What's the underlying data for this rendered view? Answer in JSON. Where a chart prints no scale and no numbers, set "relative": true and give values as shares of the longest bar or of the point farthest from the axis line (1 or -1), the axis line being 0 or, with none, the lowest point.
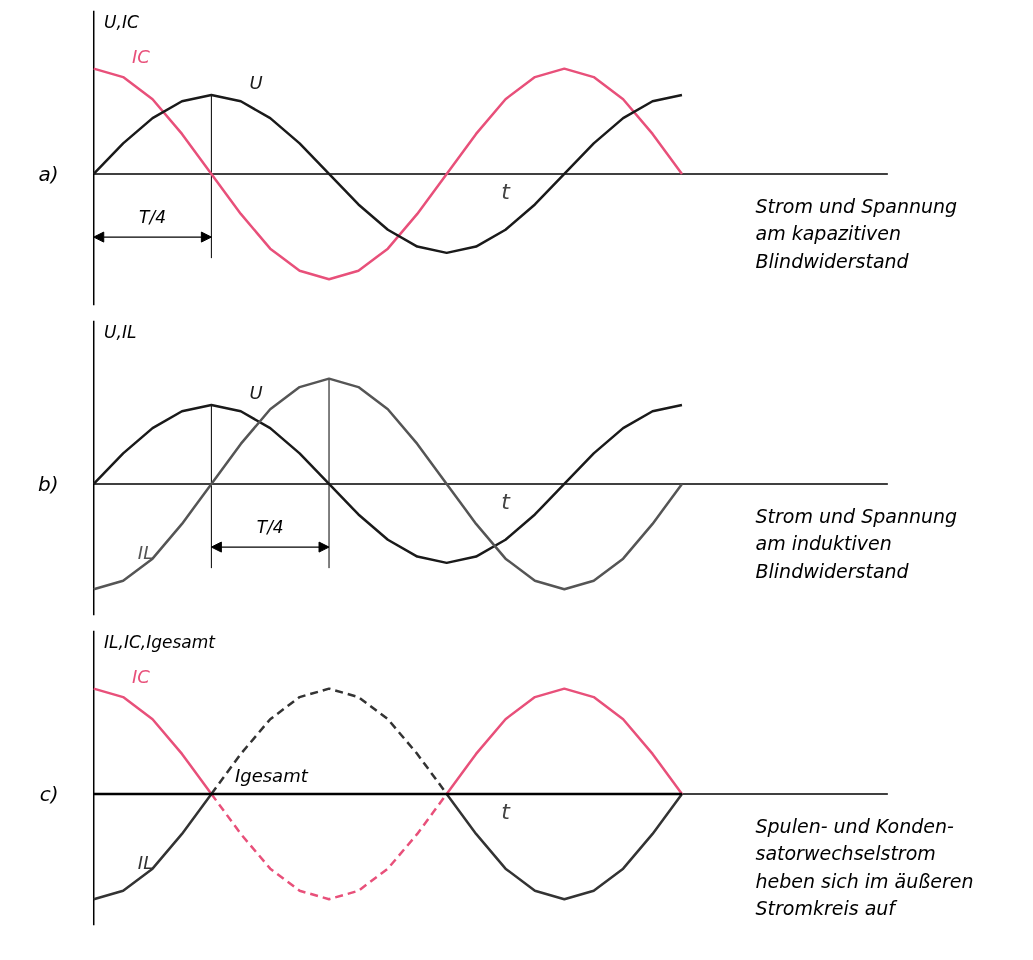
{
  "chart_data": [
    {
      "type": "line",
      "relative": true,
      "grid": false,
      "xlabel": "t",
      "ylabel": "U,IC",
      "categories": [
        null,
        null,
        null,
        null,
        null,
        null,
        null,
        null,
        null,
        null,
        null,
        null,
        null,
        null,
        null,
        null,
        null,
        null,
        null,
        null,
        null
      ],
      "series": [
        {
          "name": "IC",
          "color": "#e8507a",
          "values": [
            1,
            0.92,
            0.71,
            0.38,
            0,
            -0.38,
            -0.71,
            -0.92,
            -1,
            -0.92,
            -0.71,
            -0.38,
            0,
            0.38,
            0.71,
            0.92,
            1,
            0.92,
            0.71,
            0.38,
            0
          ]
        },
        {
          "name": "U",
          "color": "#1a1a1a",
          "values": [
            0,
            0.29,
            0.53,
            0.69,
            0.75,
            0.69,
            0.53,
            0.29,
            0,
            -0.29,
            -0.53,
            -0.69,
            -0.75,
            -0.69,
            -0.53,
            -0.29,
            0,
            0.29,
            0.53,
            0.69,
            0.75
          ]
        }
      ],
      "annotations": [
        "a)",
        "T/4",
        "Strom und Spannung\nam kapazitiven\nBlindwiderstand"
      ]
    },
    {
      "type": "line",
      "relative": true,
      "grid": false,
      "xlabel": "t",
      "ylabel": "U,IL",
      "categories": [
        null,
        null,
        null,
        null,
        null,
        null,
        null,
        null,
        null,
        null,
        null,
        null,
        null,
        null,
        null,
        null,
        null,
        null,
        null,
        null,
        null
      ],
      "series": [
        {
          "name": "U",
          "color": "#1a1a1a",
          "values": [
            0,
            0.29,
            0.53,
            0.69,
            0.75,
            0.69,
            0.53,
            0.29,
            0,
            -0.29,
            -0.53,
            -0.69,
            -0.75,
            -0.69,
            -0.53,
            -0.29,
            0,
            0.29,
            0.53,
            0.69,
            0.75
          ]
        },
        {
          "name": "IL",
          "color": "#555555",
          "values": [
            -1,
            -0.92,
            -0.71,
            -0.38,
            0,
            0.38,
            0.71,
            0.92,
            1,
            0.92,
            0.71,
            0.38,
            0,
            -0.38,
            -0.71,
            -0.92,
            -1,
            -0.92,
            -0.71,
            -0.38,
            0
          ]
        }
      ],
      "annotations": [
        "b)",
        "T/4",
        "Strom und Spannung\nam induktiven\nBlindwiderstand"
      ]
    },
    {
      "type": "line",
      "relative": true,
      "grid": false,
      "xlabel": "t",
      "ylabel": "IL,IC,Igesamt",
      "categories": [
        null,
        null,
        null,
        null,
        null,
        null,
        null,
        null,
        null,
        null,
        null,
        null,
        null,
        null,
        null,
        null,
        null,
        null,
        null,
        null,
        null
      ],
      "series": [
        {
          "name": "IC",
          "color": "#e8507a",
          "line_style": "solid",
          "values": [
            1,
            0.92,
            0.71,
            0.38,
            0,
            null,
            null,
            null,
            null,
            null,
            null,
            null,
            0,
            0.38,
            0.71,
            0.92,
            1,
            0.92,
            0.71,
            0.38,
            0
          ]
        },
        {
          "color": "#e8507a",
          "line_style": "dashed",
          "values": [
            null,
            null,
            null,
            null,
            0,
            -0.38,
            -0.71,
            -0.92,
            -1,
            -0.92,
            -0.71,
            -0.38,
            0,
            null,
            null,
            null,
            null,
            null,
            null,
            null,
            null
          ]
        },
        {
          "name": "IL",
          "color": "#333333",
          "line_style": "solid",
          "values": [
            -1,
            -0.92,
            -0.71,
            -0.38,
            0,
            null,
            null,
            null,
            null,
            null,
            null,
            null,
            0,
            -0.38,
            -0.71,
            -0.92,
            -1,
            -0.92,
            -0.71,
            -0.38,
            0
          ]
        },
        {
          "color": "#333333",
          "line_style": "dashed",
          "values": [
            null,
            null,
            null,
            null,
            0,
            0.38,
            0.71,
            0.92,
            1,
            0.92,
            0.71,
            0.38,
            0,
            null,
            null,
            null,
            null,
            null,
            null,
            null,
            null
          ]
        },
        {
          "name": "Igesamt",
          "color": "#000000",
          "line_style": "solid",
          "values": [
            0,
            0,
            0,
            0,
            0,
            0,
            0,
            0,
            0,
            0,
            0,
            0,
            0,
            0,
            0,
            0,
            0,
            0,
            0,
            0,
            0
          ]
        }
      ],
      "annotations": [
        "c)",
        "Spulen- und Konden-\nsatorwechselstrom\nheben sich im äußeren\nStromkreis auf"
      ]
    }
  ]
}
